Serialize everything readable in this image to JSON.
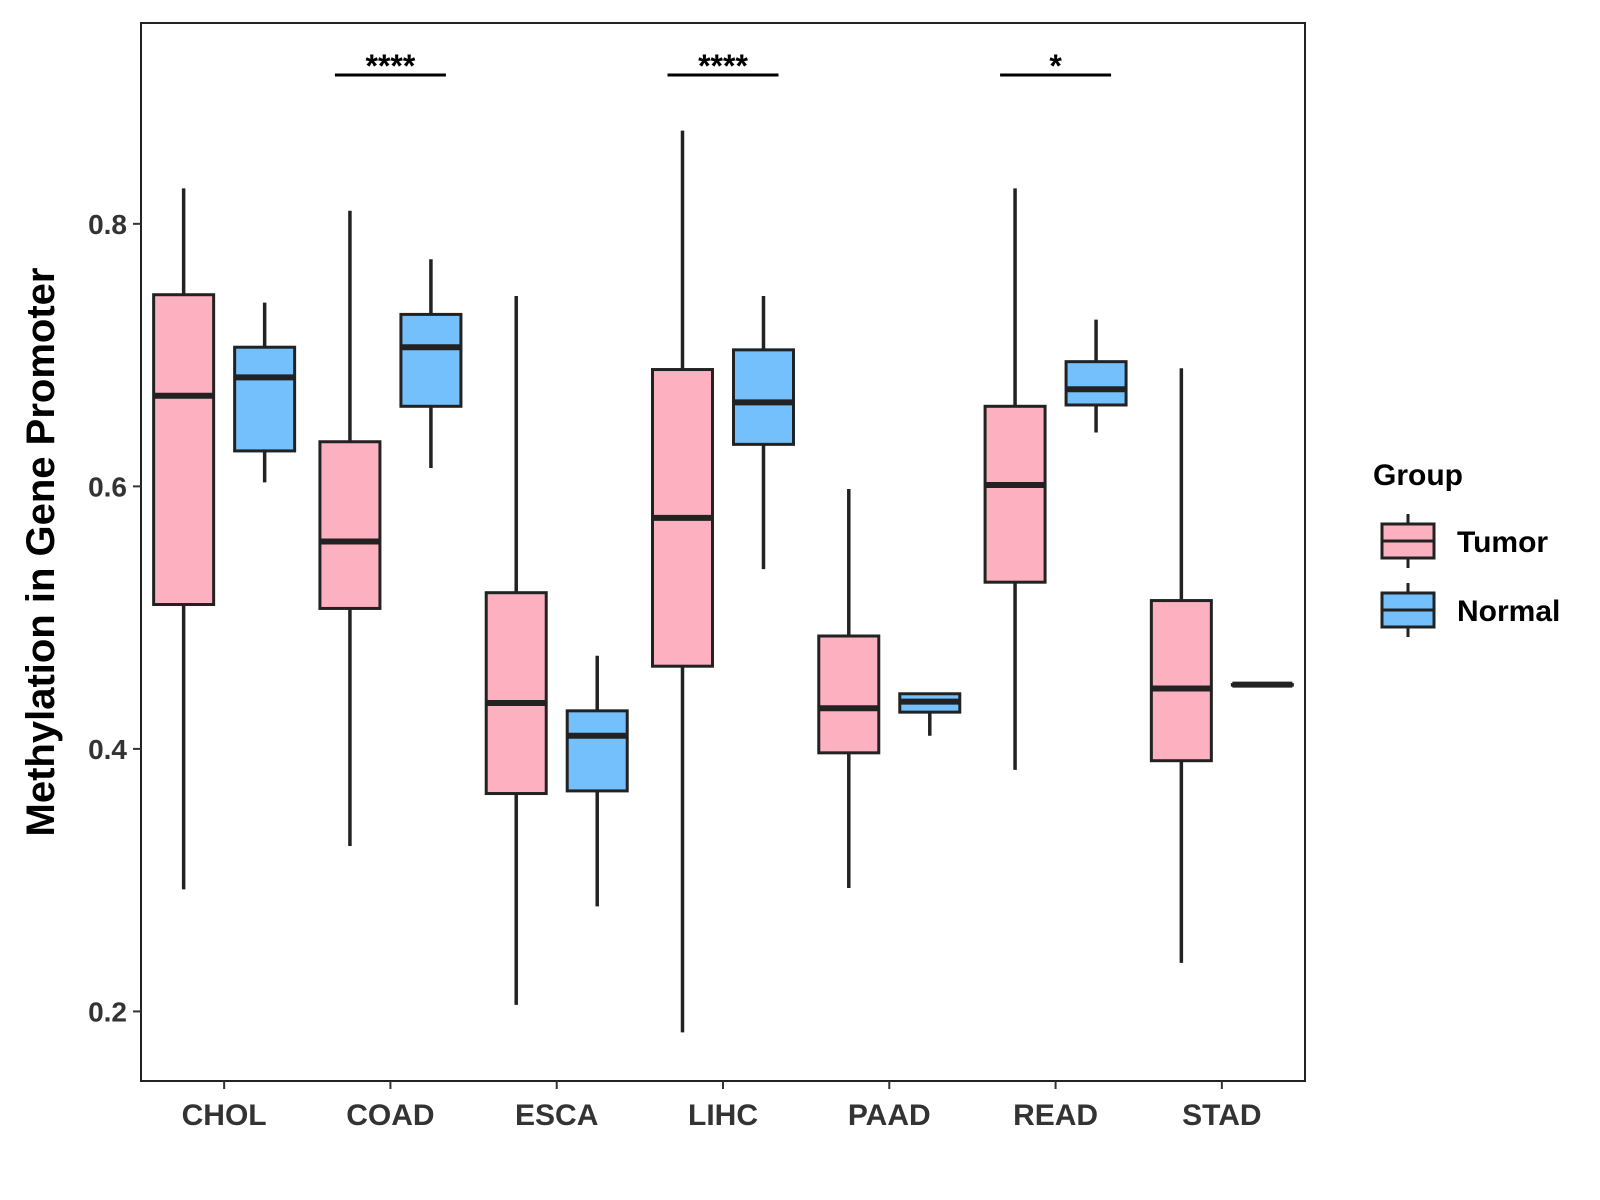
{
  "chart_data": {
    "type": "boxplot",
    "title": "",
    "xlabel": "",
    "ylabel": "Methylation in Gene Promoter",
    "ylim": [
      0.147,
      0.953
    ],
    "yticks": [
      0.2,
      0.4,
      0.6,
      0.8
    ],
    "ytick_labels": [
      "0.2",
      "0.4",
      "0.6",
      "0.8"
    ],
    "grid": false,
    "categories": [
      "CHOL",
      "COAD",
      "ESCA",
      "LIHC",
      "PAAD",
      "READ",
      "STAD"
    ],
    "legend": {
      "title": "Group",
      "position": "right",
      "entries": [
        "Tumor",
        "Normal"
      ]
    },
    "colors": {
      "Tumor": "#FDB0C0",
      "Normal": "#74C0FC",
      "stroke": "#222222"
    },
    "series": [
      {
        "name": "Tumor",
        "boxes": [
          {
            "whisker_low": 0.293,
            "q1": 0.51,
            "median": 0.669,
            "q3": 0.746,
            "whisker_high": 0.827
          },
          {
            "whisker_low": 0.326,
            "q1": 0.507,
            "median": 0.558,
            "q3": 0.634,
            "whisker_high": 0.81
          },
          {
            "whisker_low": 0.205,
            "q1": 0.366,
            "median": 0.435,
            "q3": 0.519,
            "whisker_high": 0.745
          },
          {
            "whisker_low": 0.184,
            "q1": 0.463,
            "median": 0.576,
            "q3": 0.689,
            "whisker_high": 0.871
          },
          {
            "whisker_low": 0.294,
            "q1": 0.397,
            "median": 0.431,
            "q3": 0.486,
            "whisker_high": 0.598
          },
          {
            "whisker_low": 0.384,
            "q1": 0.527,
            "median": 0.601,
            "q3": 0.661,
            "whisker_high": 0.827
          },
          {
            "whisker_low": 0.237,
            "q1": 0.391,
            "median": 0.446,
            "q3": 0.513,
            "whisker_high": 0.69
          }
        ]
      },
      {
        "name": "Normal",
        "boxes": [
          {
            "whisker_low": 0.603,
            "q1": 0.627,
            "median": 0.683,
            "q3": 0.706,
            "whisker_high": 0.74
          },
          {
            "whisker_low": 0.614,
            "q1": 0.661,
            "median": 0.706,
            "q3": 0.731,
            "whisker_high": 0.773
          },
          {
            "whisker_low": 0.28,
            "q1": 0.368,
            "median": 0.41,
            "q3": 0.429,
            "whisker_high": 0.471
          },
          {
            "whisker_low": 0.537,
            "q1": 0.632,
            "median": 0.664,
            "q3": 0.704,
            "whisker_high": 0.745
          },
          {
            "whisker_low": 0.41,
            "q1": 0.428,
            "median": 0.436,
            "q3": 0.442,
            "whisker_high": 0.442
          },
          {
            "whisker_low": 0.641,
            "q1": 0.662,
            "median": 0.674,
            "q3": 0.695,
            "whisker_high": 0.727
          },
          {
            "whisker_low": 0.449,
            "q1": 0.449,
            "median": 0.449,
            "q3": 0.449,
            "whisker_high": 0.449
          }
        ]
      }
    ],
    "significance": [
      {
        "category": "COAD",
        "label": "****"
      },
      {
        "category": "LIHC",
        "label": "****"
      },
      {
        "category": "READ",
        "label": "*"
      }
    ]
  }
}
